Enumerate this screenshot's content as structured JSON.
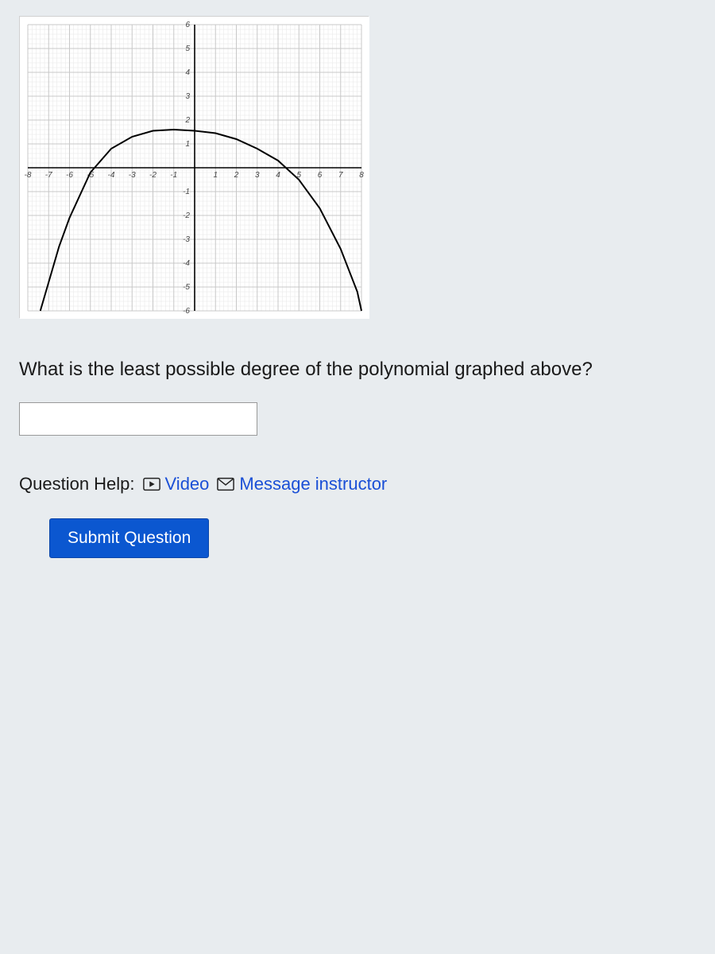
{
  "chart": {
    "type": "line",
    "xlim": [
      -8,
      8
    ],
    "ylim": [
      -6,
      6
    ],
    "xtick_step": 1,
    "ytick_step": 1,
    "xtick_labels": [
      "-8",
      "-7",
      "-6",
      "-5",
      "-4",
      "-3",
      "-2",
      "-1",
      "",
      "1",
      "2",
      "3",
      "4",
      "5",
      "6",
      "7",
      "8"
    ],
    "ytick_labels": [
      "-6",
      "-5",
      "-4",
      "-3",
      "-2",
      "-1",
      "",
      "1",
      "2",
      "3",
      "4",
      "5",
      "6"
    ],
    "major_grid_color": "#c8c8c8",
    "minor_grid_color": "#e6e6e6",
    "axis_color": "#000000",
    "background_color": "#ffffff",
    "curve_color": "#000000",
    "curve_width": 2,
    "label_color": "#444444",
    "label_fontsize": 10,
    "minor_ticks": true,
    "curve_points": [
      [
        -7.4,
        -6
      ],
      [
        -7,
        -4.8
      ],
      [
        -6.5,
        -3.3
      ],
      [
        -6,
        -2.1
      ],
      [
        -5,
        -0.2
      ],
      [
        -4,
        0.8
      ],
      [
        -3,
        1.3
      ],
      [
        -2,
        1.55
      ],
      [
        -1,
        1.6
      ],
      [
        0,
        1.55
      ],
      [
        1,
        1.45
      ],
      [
        2,
        1.2
      ],
      [
        3,
        0.8
      ],
      [
        4,
        0.3
      ],
      [
        5,
        -0.5
      ],
      [
        6,
        -1.7
      ],
      [
        7,
        -3.4
      ],
      [
        7.8,
        -5.2
      ],
      [
        8,
        -6
      ]
    ]
  },
  "question": "What is the least possible degree of the polynomial graphed above?",
  "answer_value": "",
  "help": {
    "label": "Question Help:",
    "video_label": "Video",
    "message_label": "Message instructor"
  },
  "submit_label": "Submit Question",
  "colors": {
    "page_bg": "#e8ecef",
    "link": "#1a4fd6",
    "button_bg": "#0b57d0",
    "button_text": "#ffffff",
    "text": "#1a1a1a"
  }
}
